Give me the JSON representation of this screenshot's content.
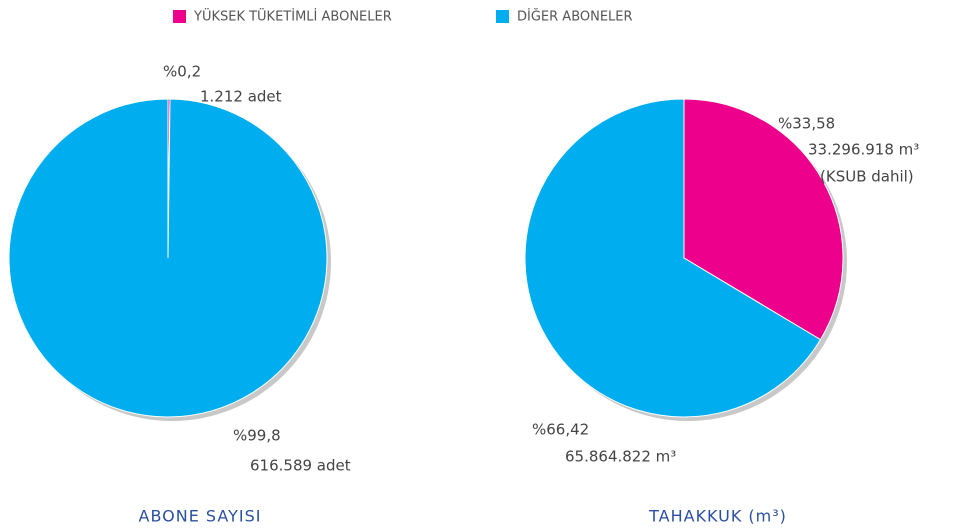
{
  "legend": [
    {
      "name": "YÜKSEK TÜKETİMLİ ABONELER",
      "color": "#ec008c"
    },
    {
      "name": "DİĞER ABONELER",
      "color": "#00aeef"
    }
  ],
  "chart_data": [
    {
      "type": "pie",
      "title": "ABONE SAYISI",
      "values": [
        0.2,
        99.8
      ],
      "value_labels": [
        "%0,2",
        "%99,8"
      ],
      "annotations": [
        [
          "1.212 adet"
        ],
        [
          "616.589 adet"
        ]
      ]
    },
    {
      "type": "pie",
      "title": "TAHAKKUK (m³)",
      "values": [
        33.58,
        66.42
      ],
      "value_labels": [
        "%33,58",
        "%66,42"
      ],
      "annotations": [
        [
          "33.296.918 m³",
          "(KSUB dahil)"
        ],
        [
          "65.864.822 m³"
        ]
      ]
    }
  ]
}
